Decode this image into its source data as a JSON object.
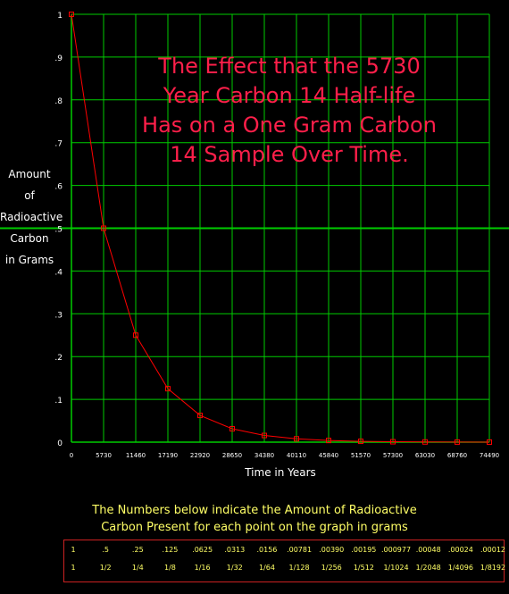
{
  "chart_data": {
    "type": "line",
    "title": "The Effect that the 5730 Year Carbon 14 Half-life Has on a One Gram Carbon 14 Sample Over Time.",
    "title_lines": [
      "The Effect that the 5730",
      "Year Carbon 14 Half-life",
      "Has on a One Gram Carbon",
      "14 Sample Over Time."
    ],
    "xlabel": "Time in Years",
    "ylabel": "Amount of Radioactive Carbon in Grams",
    "ylabel_lines": [
      "Amount",
      "of",
      "Radioactive",
      "Carbon",
      "in Grams"
    ],
    "x_ticks": [
      "0",
      "5730",
      "11460",
      "17190",
      "22920",
      "28650",
      "34380",
      "40110",
      "45840",
      "51570",
      "57300",
      "63030",
      "68760",
      "74490"
    ],
    "y_ticks": [
      "0",
      ".1",
      ".2",
      ".3",
      ".4",
      ".5",
      ".6",
      ".7",
      ".8",
      ".9",
      "1"
    ],
    "xlim": [
      0,
      74490
    ],
    "ylim": [
      0,
      1
    ],
    "grid": true,
    "series": [
      {
        "x": [
          0,
          5730,
          11460,
          17190,
          22920,
          28650,
          34380,
          40110,
          45840,
          51570,
          57300,
          63030,
          68760,
          74490
        ],
        "values": [
          1,
          0.5,
          0.25,
          0.125,
          0.0625,
          0.0313,
          0.0156,
          0.00781,
          0.0039,
          0.00195,
          0.000977,
          0.00048,
          0.00024,
          0.00012
        ]
      }
    ],
    "reference_line": 0.5
  },
  "colors": {
    "background": "#000000",
    "grid": "#00cc00",
    "series": "#ff0000",
    "title": "#ff1f4a",
    "note": "#ffff66",
    "table_border": "#cc2222"
  },
  "note_lines": [
    "The Numbers below indicate the Amount of Radioactive",
    "Carbon Present for each point on the graph in grams"
  ],
  "table": {
    "decimals": [
      "1",
      ".5",
      ".25",
      ".125",
      ".0625",
      ".0313",
      ".0156",
      ".00781",
      ".00390",
      ".00195",
      ".000977",
      ".00048",
      ".00024",
      ".00012"
    ],
    "fractions": [
      "1",
      "1/2",
      "1/4",
      "1/8",
      "1/16",
      "1/32",
      "1/64",
      "1/128",
      "1/256",
      "1/512",
      "1/1024",
      "1/2048",
      "1/4096",
      "1/8192"
    ]
  }
}
